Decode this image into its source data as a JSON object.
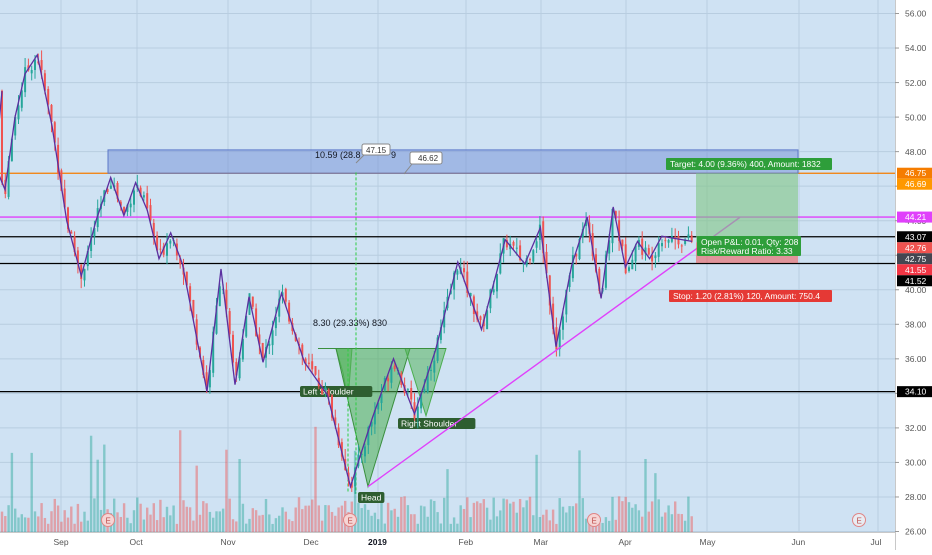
{
  "chart_data": {
    "type": "candlestick",
    "ylim": [
      26,
      56
    ],
    "grid": true,
    "y_ticks": [
      "56.00",
      "54.00",
      "52.00",
      "50.00",
      "48.00",
      "46.00",
      "44.00",
      "42.00",
      "40.00",
      "38.00",
      "36.00",
      "34.00",
      "32.00",
      "30.00",
      "28.00",
      "26.00"
    ],
    "x_ticks": [
      "Sep",
      "Oct",
      "Nov",
      "Dec",
      "2019",
      "Feb",
      "Mar",
      "Apr",
      "May",
      "Jun",
      "Jul"
    ],
    "price_path": [
      [
        "Aug",
        51.5
      ],
      [
        "Aug",
        47.2
      ],
      [
        "Aug",
        45.8
      ],
      [
        "Aug",
        50.0
      ],
      [
        "Aug",
        52.5
      ],
      [
        "Sep",
        53.6
      ],
      [
        "Sep",
        49.5
      ],
      [
        "Sep",
        44.0
      ],
      [
        "Sep",
        40.8
      ],
      [
        "Sep",
        44.0
      ],
      [
        "Sep",
        46.5
      ],
      [
        "Oct",
        44.3
      ],
      [
        "Oct",
        46.2
      ],
      [
        "Oct",
        44.6
      ],
      [
        "Oct",
        41.8
      ],
      [
        "Oct",
        43.3
      ],
      [
        "Oct",
        41.5
      ],
      [
        "Oct",
        38.0
      ],
      [
        "Nov",
        34.1
      ],
      [
        "Nov",
        41.2
      ],
      [
        "Nov",
        34.5
      ],
      [
        "Nov",
        39.6
      ],
      [
        "Nov",
        35.8
      ],
      [
        "Dec",
        39.8
      ],
      [
        "Dec",
        35.8
      ],
      [
        "Dec",
        33.9
      ],
      [
        "Dec",
        28.6
      ],
      [
        "2019",
        32.6
      ],
      [
        "2019",
        36.0
      ],
      [
        "2019",
        32.8
      ],
      [
        "2019",
        36.5
      ],
      [
        "Feb",
        41.6
      ],
      [
        "Feb",
        37.7
      ],
      [
        "Feb",
        42.9
      ],
      [
        "Mar",
        41.5
      ],
      [
        "Mar",
        43.6
      ],
      [
        "Mar",
        36.7
      ],
      [
        "Mar",
        41.4
      ],
      [
        "Mar",
        44.2
      ],
      [
        "Apr",
        39.5
      ],
      [
        "Apr",
        44.8
      ],
      [
        "Apr",
        41.3
      ],
      [
        "Apr",
        42.8
      ],
      [
        "Apr",
        41.8
      ],
      [
        "Apr",
        43.1
      ],
      [
        "Apr",
        42.8
      ]
    ],
    "horizontal_levels": [
      {
        "value": 46.75,
        "label": "46.75",
        "color": "#f57c00"
      },
      {
        "value": 44.21,
        "label": "44.21",
        "color": "#e040fb"
      },
      {
        "value": 43.07,
        "label": "43.07",
        "color": "#000000"
      },
      {
        "value": 41.52,
        "label": "41.52",
        "color": "#000000"
      },
      {
        "value": 34.1,
        "label": "34.10",
        "color": "#000000"
      }
    ],
    "price_badges": [
      {
        "value": 46.69,
        "label": "46.69",
        "color": "#ff9800"
      },
      {
        "value": 42.75,
        "label": "42.75",
        "color": "#434651"
      },
      {
        "value": 42.76,
        "label": "42.76",
        "color": "#ef5350"
      },
      {
        "value": 41.55,
        "label": "41.55",
        "color": "#f23645"
      }
    ],
    "range_box": {
      "low": 46.75,
      "high": 48.1,
      "label": "10.59 (28.8",
      "label_tail": "9"
    },
    "callouts": [
      {
        "text": "47.15"
      },
      {
        "text": "46.62"
      }
    ],
    "pattern": {
      "label": "8.30 (29.33%) 830",
      "neckline": 36.6,
      "left_shoulder_label": "Left Shoulder",
      "head_label": "Head",
      "right_shoulder_label": "Right Shoulder"
    },
    "trendline": {
      "start": 28.6,
      "end": 44.2
    },
    "position": {
      "target_label": "Target: 4.00 (9.36%) 400, Amount: 1832",
      "pl_label": "Open P&L: 0.01, Qty: 208",
      "rr_label": "Risk/Reward Ratio: 3.33",
      "stop_label": "Stop: 1.20 (2.81%) 120, Amount: 750.4",
      "entry": 42.75,
      "target": 46.75,
      "stop": 41.55
    },
    "earnings_marker": "E",
    "colors": {
      "background": "#cfe2f3",
      "up": "#26a69a",
      "down": "#ef5350",
      "pattern_line": "#5b2fa0",
      "trendline": "#e040fb",
      "target_zone": "#9fdcb1",
      "range_box": "#7c97d8"
    }
  }
}
